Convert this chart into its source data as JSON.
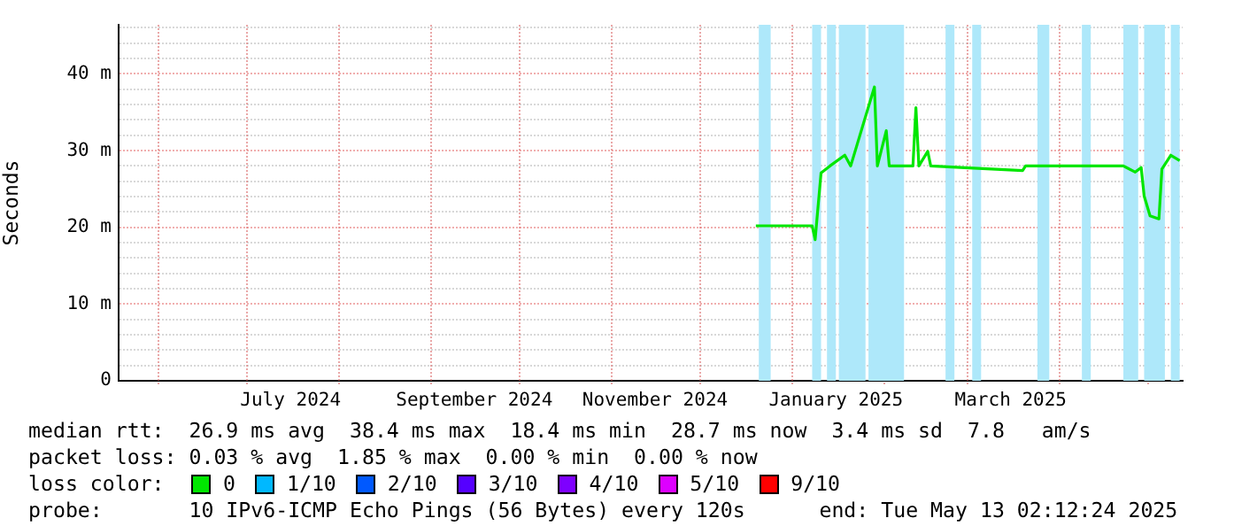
{
  "chart_data": {
    "type": "line",
    "ylabel": "Seconds",
    "legend_title": "loss color:",
    "legend": "bottom",
    "grid": true,
    "marker": "none",
    "line_style": "solid",
    "xlim": [
      "2024-05-19",
      "2025-05-13"
    ],
    "xticks": [
      {
        "value": "2024-06-01",
        "label": null
      },
      {
        "value": "2024-07-01",
        "label": null
      },
      {
        "value": "2024-07-16",
        "label": "July 2024"
      },
      {
        "value": "2024-08-01",
        "label": null
      },
      {
        "value": "2024-09-01",
        "label": null
      },
      {
        "value": "2024-09-16",
        "label": "September 2024"
      },
      {
        "value": "2024-10-01",
        "label": null
      },
      {
        "value": "2024-11-01",
        "label": null
      },
      {
        "value": "2024-11-16",
        "label": "November 2024"
      },
      {
        "value": "2024-12-01",
        "label": null
      },
      {
        "value": "2025-01-01",
        "label": null
      },
      {
        "value": "2025-01-16",
        "label": "January 2025"
      },
      {
        "value": "2025-02-01",
        "label": null
      },
      {
        "value": "2025-03-01",
        "label": null
      },
      {
        "value": "2025-03-16",
        "label": "March 2025"
      },
      {
        "value": "2025-04-01",
        "label": null
      },
      {
        "value": "2025-05-01",
        "label": null
      }
    ],
    "ylim": [
      0,
      46.4
    ],
    "yticks": [
      {
        "value": 0,
        "label": "0"
      },
      {
        "value": 2,
        "label": null
      },
      {
        "value": 4,
        "label": null
      },
      {
        "value": 6,
        "label": null
      },
      {
        "value": 8,
        "label": null
      },
      {
        "value": 10,
        "label": "10 m"
      },
      {
        "value": 12,
        "label": null
      },
      {
        "value": 14,
        "label": null
      },
      {
        "value": 16,
        "label": null
      },
      {
        "value": 18,
        "label": null
      },
      {
        "value": 20,
        "label": "20 m"
      },
      {
        "value": 22,
        "label": null
      },
      {
        "value": 24,
        "label": null
      },
      {
        "value": 26,
        "label": null
      },
      {
        "value": 28,
        "label": null
      },
      {
        "value": 30,
        "label": "30 m"
      },
      {
        "value": 32,
        "label": null
      },
      {
        "value": 34,
        "label": null
      },
      {
        "value": 36,
        "label": null
      },
      {
        "value": 38,
        "label": null
      },
      {
        "value": 40,
        "label": "40 m"
      },
      {
        "value": 42,
        "label": null
      },
      {
        "value": 44,
        "label": null
      },
      {
        "value": 46,
        "label": null
      }
    ],
    "bands": [
      {
        "axis": "x",
        "from": "2024-12-21",
        "to": "2024-12-25",
        "color": "#aee8fa"
      },
      {
        "axis": "x",
        "from": "2025-01-08",
        "to": "2025-01-11",
        "color": "#aee8fa"
      },
      {
        "axis": "x",
        "from": "2025-01-13",
        "to": "2025-01-16",
        "color": "#aee8fa"
      },
      {
        "axis": "x",
        "from": "2025-01-17",
        "to": "2025-01-26",
        "color": "#aee8fa"
      },
      {
        "axis": "x",
        "from": "2025-01-27",
        "to": "2025-02-08",
        "color": "#aee8fa"
      },
      {
        "axis": "x",
        "from": "2025-02-22",
        "to": "2025-02-25",
        "color": "#aee8fa"
      },
      {
        "axis": "x",
        "from": "2025-03-03",
        "to": "2025-03-06",
        "color": "#aee8fa"
      },
      {
        "axis": "x",
        "from": "2025-03-25",
        "to": "2025-03-29",
        "color": "#aee8fa"
      },
      {
        "axis": "x",
        "from": "2025-04-09",
        "to": "2025-04-12",
        "color": "#aee8fa"
      },
      {
        "axis": "x",
        "from": "2025-04-23",
        "to": "2025-04-28",
        "color": "#aee8fa"
      },
      {
        "axis": "x",
        "from": "2025-04-30",
        "to": "2025-05-07",
        "color": "#aee8fa"
      },
      {
        "axis": "x",
        "from": "2025-05-09",
        "to": "2025-05-12",
        "color": "#aee8fa"
      }
    ],
    "series": [
      {
        "name": "0",
        "color": "#00e600",
        "x": [
          "2024-12-20",
          "2025-01-08",
          "2025-01-09",
          "2025-01-11",
          "2025-01-14",
          "2025-01-19",
          "2025-01-21",
          "2025-01-29",
          "2025-01-30",
          "2025-02-02",
          "2025-02-03",
          "2025-02-11",
          "2025-02-12",
          "2025-02-13",
          "2025-02-16",
          "2025-02-17",
          "2025-02-27",
          "2025-03-20",
          "2025-03-21",
          "2025-04-23",
          "2025-04-27",
          "2025-04-29",
          "2025-04-30",
          "2025-05-02",
          "2025-05-05",
          "2025-05-06",
          "2025-05-09",
          "2025-05-12"
        ],
        "values": [
          20.2,
          20.2,
          18.4,
          27.1,
          28.0,
          29.4,
          28.0,
          38.3,
          28.0,
          32.6,
          28.0,
          28.0,
          35.6,
          28.0,
          29.9,
          28.0,
          27.8,
          27.4,
          28.0,
          28.0,
          27.2,
          27.8,
          24.1,
          21.5,
          21.1,
          27.6,
          29.4,
          28.7
        ]
      },
      {
        "name": "1/10",
        "color": "#00b8ff"
      },
      {
        "name": "2/10",
        "color": "#0059ff"
      },
      {
        "name": "3/10",
        "color": "#5500ff"
      },
      {
        "name": "4/10",
        "color": "#7e00ff"
      },
      {
        "name": "5/10",
        "color": "#dd00ff"
      },
      {
        "name": "9/10",
        "color": "#ff0000"
      }
    ],
    "annotations": [
      "median rtt:  26.9 ms avg  38.4 ms max  18.4 ms min  28.7 ms now  3.4 ms sd  7.8   am/s",
      "packet loss: 0.03 % avg  1.85 % max  0.00 % min  0.00 % now",
      "probe:       10 IPv6-ICMP Echo Pings (56 Bytes) every 120s      end: Tue May 13 02:12:24 2025"
    ]
  }
}
